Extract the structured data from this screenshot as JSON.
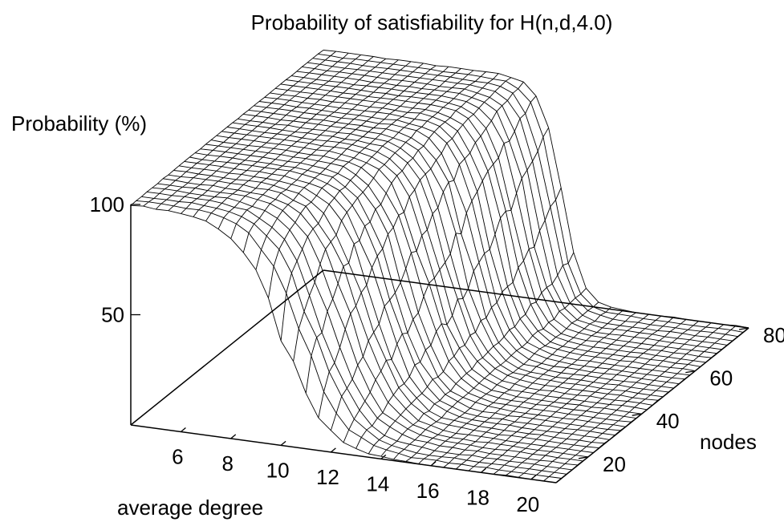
{
  "chart_data": {
    "type": "surface",
    "title": "Probability of satisfiability for H(n,d,4.0)",
    "xlabel": "average degree",
    "ylabel": "nodes",
    "zlabel": "Probability (%)",
    "x_ticks": [
      "6",
      "8",
      "10",
      "12",
      "14",
      "16",
      "18",
      "20"
    ],
    "y_ticks": [
      "20",
      "40",
      "60",
      "80"
    ],
    "z_ticks": [
      "50",
      "100"
    ],
    "xlim": [
      4,
      21
    ],
    "ylim": [
      8,
      80
    ],
    "zlim": [
      0,
      100
    ],
    "x_grid": [
      4,
      4.5,
      5,
      5.5,
      6,
      6.5,
      7,
      7.5,
      8,
      8.5,
      9,
      9.5,
      10,
      10.5,
      11,
      11.5,
      12,
      12.5,
      13,
      13.5,
      14,
      14.5,
      15,
      15.5,
      16,
      16.5,
      17,
      17.5,
      18,
      18.5,
      19,
      19.5,
      20,
      20.5,
      21
    ],
    "y_grid": [
      8,
      10,
      12,
      14,
      16,
      18,
      20,
      22,
      24,
      26,
      28,
      30,
      32,
      34,
      36,
      38,
      40,
      42,
      44,
      46,
      48,
      50,
      52,
      54,
      56,
      58,
      60,
      62,
      64,
      66,
      68,
      70,
      72,
      74,
      76,
      78,
      80
    ],
    "transition_midpoint_degree": {
      "at_nodes_8": 10.0,
      "at_nodes_80": 13.5
    },
    "surface_description_values": {
      "low_degree_probability": 100,
      "high_degree_probability": 0
    }
  }
}
